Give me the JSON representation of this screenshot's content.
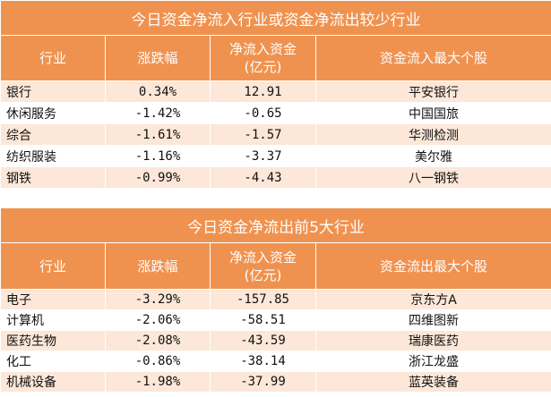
{
  "inflow": {
    "title": "今日资金净流入行业或资金净流出较少行业",
    "headers": [
      "行业",
      "涨跌幅",
      "净流入资金\n(亿元)",
      "资金流入最大个股"
    ],
    "rows": [
      {
        "industry": "银行",
        "change": "0.34%",
        "netflow": "12.91",
        "stock": "平安银行"
      },
      {
        "industry": "休闲服务",
        "change": "-1.42%",
        "netflow": "-0.65",
        "stock": "中国国旅"
      },
      {
        "industry": "综合",
        "change": "-1.61%",
        "netflow": "-1.57",
        "stock": "华测检测"
      },
      {
        "industry": "纺织服装",
        "change": "-1.16%",
        "netflow": "-3.37",
        "stock": "美尔雅"
      },
      {
        "industry": "钢铁",
        "change": "-0.99%",
        "netflow": "-4.43",
        "stock": "八一钢铁"
      }
    ]
  },
  "outflow": {
    "title": "今日资金净流出前5大行业",
    "headers": [
      "行业",
      "涨跌幅",
      "净流入资金\n(亿元)",
      "资金流出最大个股"
    ],
    "rows": [
      {
        "industry": "电子",
        "change": "-3.29%",
        "netflow": "-157.85",
        "stock": "京东方A"
      },
      {
        "industry": "计算机",
        "change": "-2.06%",
        "netflow": "-58.51",
        "stock": "四维图新"
      },
      {
        "industry": "医药生物",
        "change": "-2.08%",
        "netflow": "-43.59",
        "stock": "瑞康医药"
      },
      {
        "industry": "化工",
        "change": "-0.86%",
        "netflow": "-38.14",
        "stock": "浙江龙盛"
      },
      {
        "industry": "机械设备",
        "change": "-1.98%",
        "netflow": "-37.99",
        "stock": "蓝英装备"
      }
    ]
  },
  "colors": {
    "header_bg": "#f0924f",
    "odd_row_bg": "#fce7d8",
    "even_row_bg": "#ffffff"
  }
}
